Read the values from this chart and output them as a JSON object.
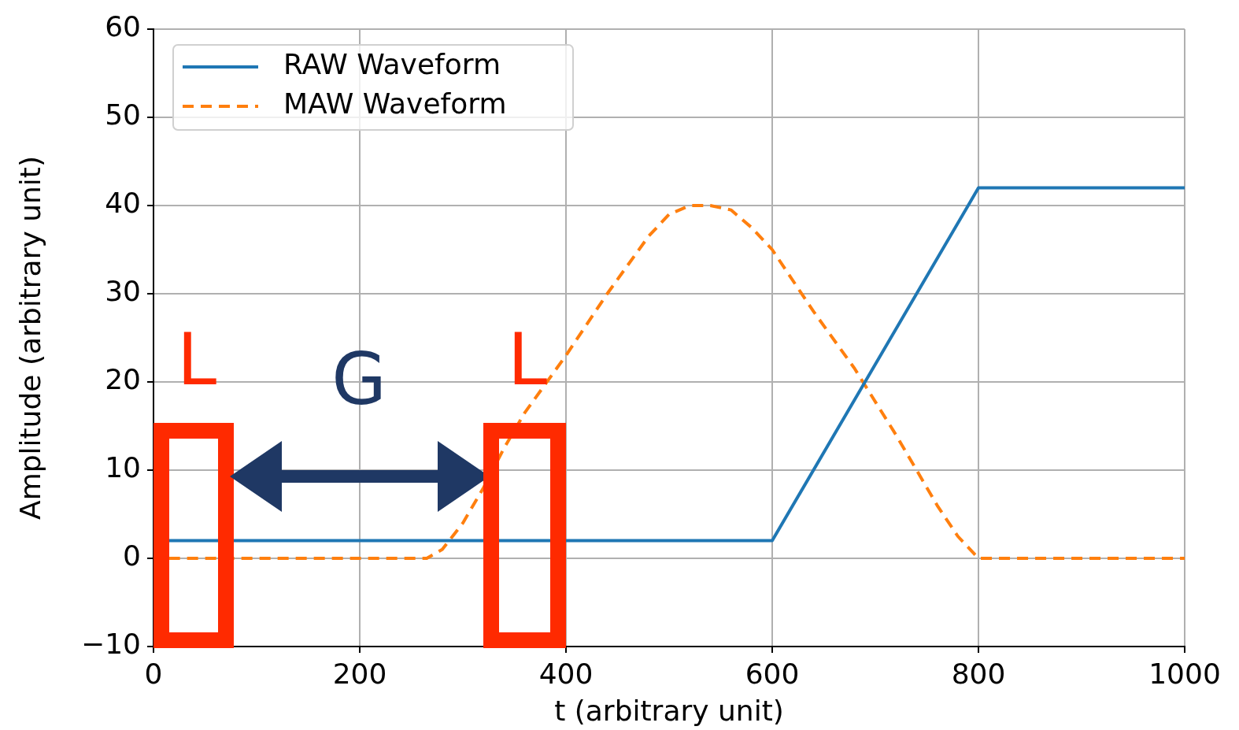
{
  "chart_data": {
    "type": "line",
    "xlabel": "t (arbitrary unit)",
    "ylabel": "Amplitude (arbitrary unit)",
    "xlim": [
      0,
      1000
    ],
    "xticks": [
      0,
      200,
      400,
      600,
      800,
      1000
    ],
    "ylim": [
      -10,
      60
    ],
    "yticks": [
      -10,
      0,
      10,
      20,
      30,
      40,
      50,
      60
    ],
    "grid": true,
    "legend": "top left",
    "marker": "none",
    "series": [
      {
        "name": "RAW Waveform",
        "color": "#1f77b4",
        "line_style": "solid",
        "x": [
          15,
          600,
          800,
          1000
        ],
        "values": [
          2,
          2,
          42,
          42
        ]
      },
      {
        "name": "MAW Waveform",
        "color": "#ff7f0e",
        "line_style": "dashed",
        "x": [
          15,
          265,
          280,
          300,
          320,
          340,
          360,
          400,
          440,
          480,
          500,
          520,
          540,
          560,
          580,
          600,
          640,
          680,
          720,
          760,
          780,
          800,
          1000
        ],
        "values": [
          0,
          0,
          1,
          4,
          8,
          12.5,
          16.5,
          23,
          30,
          36.5,
          39,
          40,
          40,
          39.5,
          37.5,
          35,
          28,
          21.5,
          14,
          6,
          2.5,
          0,
          0
        ]
      }
    ],
    "annotations": [
      "L",
      "G",
      "L"
    ]
  }
}
